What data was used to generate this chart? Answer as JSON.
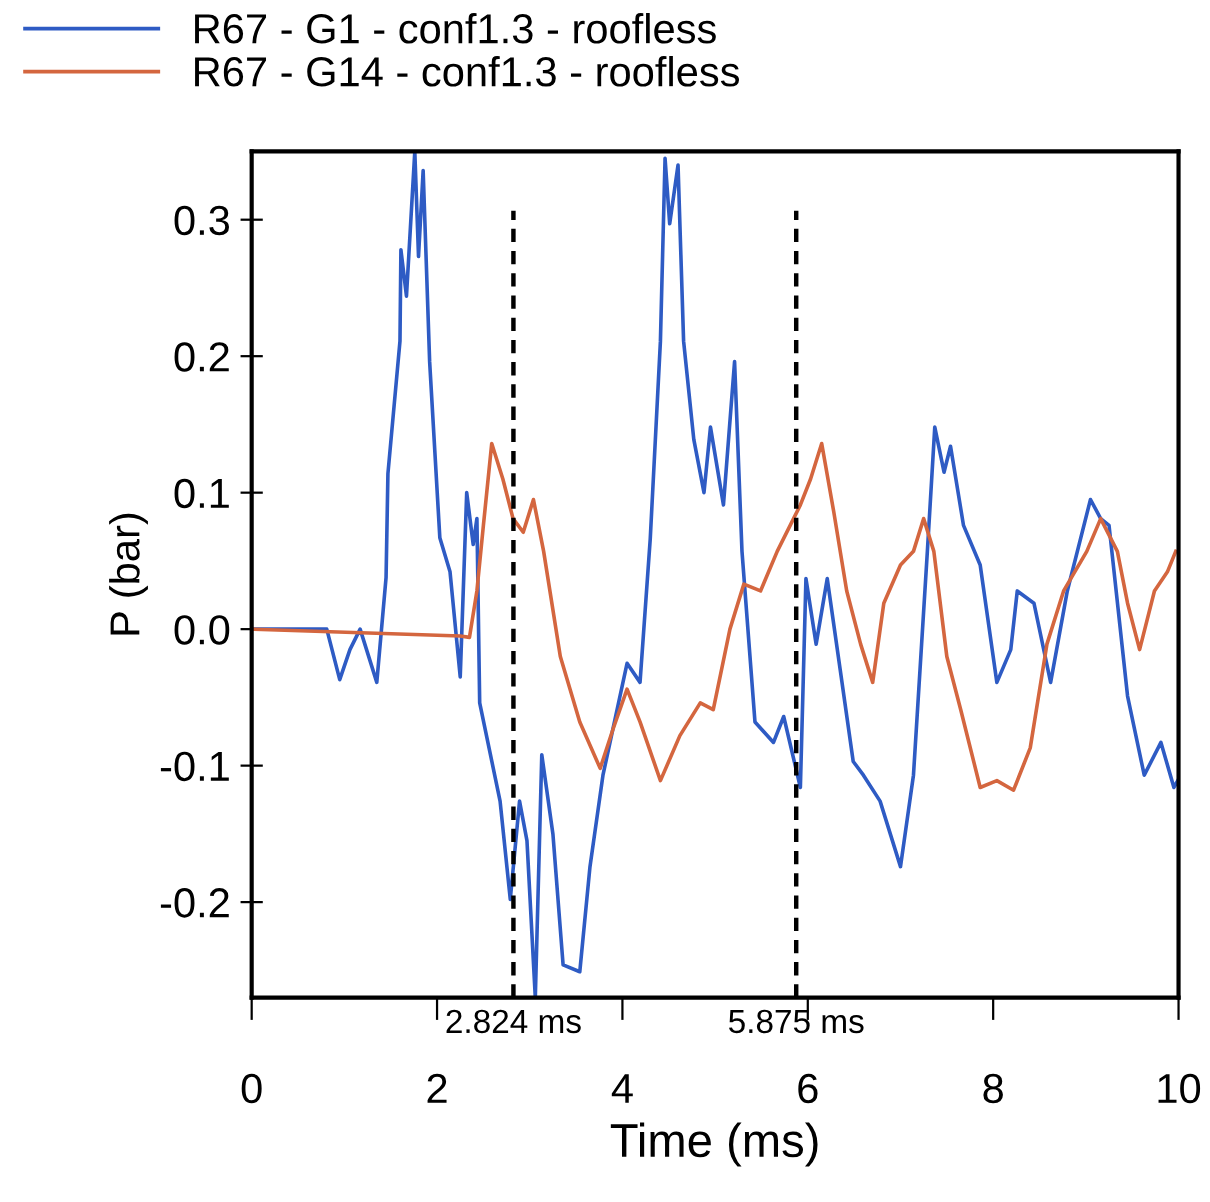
{
  "chart_data": {
    "type": "line",
    "xlabel": "Time (ms)",
    "ylabel": "P (bar)",
    "xlim": [
      0,
      10
    ],
    "ylim": [
      -0.27,
      0.35
    ],
    "xticks": [
      0,
      2,
      4,
      6,
      8,
      10
    ],
    "yticks": [
      {
        "value": -0.2,
        "label": "-0.2"
      },
      {
        "value": -0.1,
        "label": "-0.1"
      },
      {
        "value": 0,
        "label": "0.0"
      },
      {
        "value": 0.1,
        "label": "0.1"
      },
      {
        "value": 0.2,
        "label": "0.2"
      },
      {
        "value": 0.3,
        "label": "0.3"
      }
    ],
    "grid": false,
    "legend": "top left",
    "line_style": "solid",
    "marker": "none",
    "ref_lines": [
      {
        "axis": "x",
        "value": 2.824,
        "label": "2.824 ms",
        "color": "#000000",
        "line_style": "dashed"
      },
      {
        "axis": "x",
        "value": 5.875,
        "label": "5.875 ms",
        "color": "#000000",
        "line_style": "dashed"
      }
    ],
    "series": [
      {
        "name": "R67 - G1 - conf1.3 - roofless",
        "color": "#2e5bc4",
        "x": [
          0,
          0.81,
          0.95,
          1.06,
          1.17,
          1.35,
          1.45,
          1.47,
          1.6,
          1.61,
          1.67,
          1.76,
          1.8,
          1.85,
          1.92,
          2.03,
          2.14,
          2.25,
          2.32,
          2.39,
          2.43,
          2.46,
          2.68,
          2.79,
          2.89,
          2.97,
          3.06,
          3.13,
          3.25,
          3.36,
          3.54,
          3.65,
          3.79,
          4.05,
          4.19,
          4.3,
          4.41,
          4.46,
          4.51,
          4.6,
          4.66,
          4.77,
          4.88,
          4.95,
          5.09,
          5.21,
          5.29,
          5.43,
          5.63,
          5.74,
          5.92,
          5.98,
          6.09,
          6.21,
          6.35,
          6.49,
          6.6,
          6.78,
          7.0,
          7.14,
          7.29,
          7.37,
          7.47,
          7.54,
          7.68,
          7.86,
          8.04,
          8.19,
          8.26,
          8.44,
          8.62,
          8.8,
          9.05,
          9.16,
          9.25,
          9.45,
          9.63,
          9.81,
          9.95,
          10
        ],
        "values": [
          0,
          0,
          -0.037,
          -0.015,
          0.0,
          -0.039,
          0.038,
          0.114,
          0.211,
          0.278,
          0.244,
          0.35,
          0.273,
          0.336,
          0.196,
          0.067,
          0.042,
          -0.035,
          0.1,
          0.062,
          0.081,
          -0.054,
          -0.126,
          -0.198,
          -0.126,
          -0.155,
          -0.27,
          -0.092,
          -0.15,
          -0.246,
          -0.251,
          -0.174,
          -0.107,
          -0.025,
          -0.039,
          0.066,
          0.211,
          0.345,
          0.297,
          0.34,
          0.211,
          0.139,
          0.1,
          0.148,
          0.091,
          0.196,
          0.057,
          -0.068,
          -0.083,
          -0.064,
          -0.116,
          0.037,
          -0.011,
          0.037,
          -0.03,
          -0.097,
          -0.107,
          -0.126,
          -0.174,
          -0.107,
          0.057,
          0.148,
          0.115,
          0.134,
          0.076,
          0.047,
          -0.039,
          -0.015,
          0.028,
          0.019,
          -0.039,
          0.028,
          0.095,
          0.081,
          0.076,
          -0.049,
          -0.107,
          -0.083,
          -0.116,
          -0.11
        ]
      },
      {
        "name": "R67 - G14 - conf1.3 - roofless",
        "color": "#d4663f",
        "x": [
          0,
          2.25,
          2.35,
          2.43,
          2.5,
          2.59,
          2.71,
          2.82,
          2.93,
          3.04,
          3.15,
          3.33,
          3.54,
          3.76,
          3.9,
          4.05,
          4.19,
          4.41,
          4.62,
          4.84,
          4.98,
          5.16,
          5.31,
          5.49,
          5.67,
          5.81,
          5.92,
          6.03,
          6.15,
          6.28,
          6.42,
          6.57,
          6.7,
          6.82,
          7.0,
          7.14,
          7.25,
          7.36,
          7.5,
          7.65,
          7.86,
          8.04,
          8.22,
          8.4,
          8.58,
          8.76,
          9.01,
          9.16,
          9.34,
          9.45,
          9.58,
          9.74,
          9.88,
          9.97
        ],
        "values": [
          0,
          -0.005,
          -0.006,
          0.028,
          0.076,
          0.136,
          0.11,
          0.081,
          0.071,
          0.095,
          0.057,
          -0.02,
          -0.068,
          -0.102,
          -0.073,
          -0.044,
          -0.068,
          -0.111,
          -0.078,
          -0.054,
          -0.059,
          0.0,
          0.033,
          0.028,
          0.057,
          0.076,
          0.091,
          0.11,
          0.136,
          0.086,
          0.028,
          -0.011,
          -0.039,
          0.019,
          0.047,
          0.057,
          0.081,
          0.057,
          -0.02,
          -0.059,
          -0.116,
          -0.111,
          -0.118,
          -0.087,
          -0.011,
          0.028,
          0.057,
          0.081,
          0.057,
          0.019,
          -0.015,
          0.028,
          0.042,
          0.057
        ]
      }
    ]
  }
}
